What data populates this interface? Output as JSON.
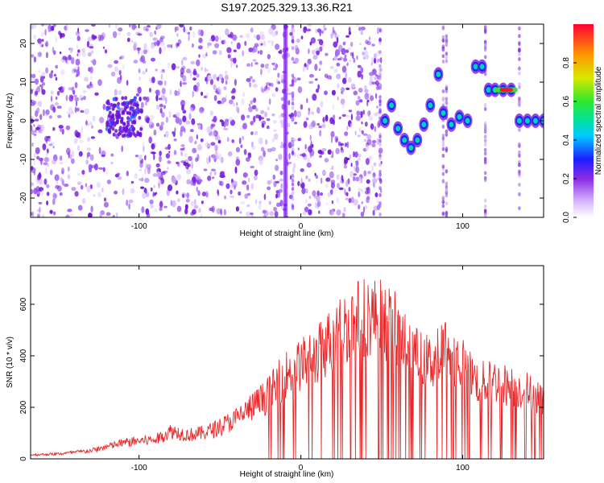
{
  "title": "S197.2025.329.13.36.R21",
  "colors": {
    "spectrum": "#8a2be2",
    "snr_line": "#e8292b",
    "frame": "#000000"
  },
  "chart_data": [
    {
      "type": "heatmap",
      "xlabel": "Height of straight line (km)",
      "ylabel": "Frequency (Hz)",
      "xlim": [
        -167,
        150
      ],
      "ylim": [
        -25,
        25
      ],
      "xticks": [
        -100,
        0,
        100
      ],
      "yticks": [
        -20,
        -10,
        0,
        10,
        20
      ],
      "colorbar": {
        "label": "Normalized spectral amplitude",
        "range": [
          0.0,
          1.0
        ],
        "ticks": [
          "0.0",
          "0.2",
          "0.4",
          "0.6",
          "0.8"
        ],
        "colormap": "rainbow"
      },
      "peak_track": {
        "x": [
          52,
          56,
          60,
          64,
          68,
          72,
          76,
          80,
          85,
          88,
          93,
          98,
          103,
          108,
          112,
          116,
          120,
          125,
          130,
          135,
          140,
          145,
          150
        ],
        "y": [
          0,
          4,
          -2,
          -5,
          -7,
          -5,
          -1,
          4,
          12,
          2,
          -1,
          1,
          0,
          14,
          14,
          8,
          8,
          8,
          8,
          0,
          0,
          0,
          0
        ]
      }
    },
    {
      "type": "line",
      "xlabel": "Height of straight line (km)",
      "ylabel": "SNR (10 * v/v)",
      "xlim": [
        -167,
        150
      ],
      "ylim": [
        0,
        750
      ],
      "xticks": [
        -100,
        0,
        100
      ],
      "yticks": [
        0,
        200,
        400,
        600
      ],
      "series": [
        {
          "x": [
            -167,
            -150,
            -130,
            -110,
            -100,
            -90,
            -80,
            -70,
            -60,
            -50,
            -40,
            -30,
            -20,
            -10,
            0,
            10,
            20,
            30,
            40,
            50,
            60,
            70,
            80,
            90,
            100,
            110,
            120,
            130,
            140,
            150
          ],
          "y": [
            20,
            25,
            40,
            80,
            90,
            95,
            140,
            120,
            130,
            160,
            200,
            260,
            320,
            420,
            470,
            520,
            610,
            680,
            720,
            700,
            640,
            520,
            480,
            560,
            470,
            380,
            390,
            360,
            340,
            300
          ]
        }
      ]
    }
  ]
}
